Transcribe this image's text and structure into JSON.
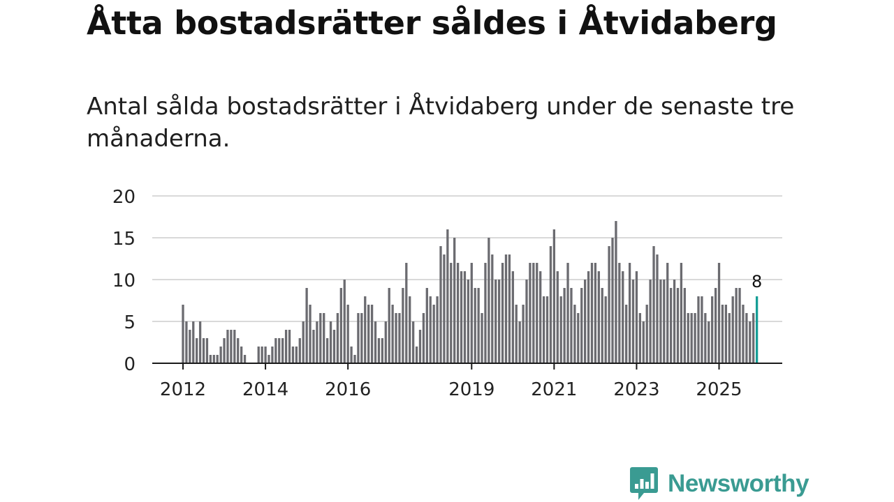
{
  "title": "Åtta bostadsrätter såldes i Åtvidaberg",
  "subtitle": "Antal sålda bostadsrätter i Åtvidaberg under de senaste tre månaderna.",
  "brand": {
    "name": "Newsworthy",
    "icon": "newsworthy-logo-icon",
    "color": "#3a9b92"
  },
  "colors": {
    "bar": "#6b6b70",
    "highlight": "#169e96",
    "grid": "#d9d9d9",
    "axis": "#1a1a1a"
  },
  "chart_data": {
    "type": "bar",
    "title": "Åtta bostadsrätter såldes i Åtvidaberg",
    "xlabel": "",
    "ylabel": "",
    "ylim": [
      0,
      20
    ],
    "y_ticks": [
      0,
      5,
      10,
      15,
      20
    ],
    "x_ticks": [
      "2012",
      "2014",
      "2016",
      "2019",
      "2021",
      "2023",
      "2025"
    ],
    "grid": true,
    "x_tick_bar_index": [
      0,
      24,
      48,
      84,
      108,
      132,
      156
    ],
    "values": [
      7,
      5,
      4,
      5,
      3,
      5,
      3,
      3,
      1,
      1,
      1,
      2,
      3,
      4,
      4,
      4,
      3,
      2,
      1,
      0,
      0,
      0,
      2,
      2,
      2,
      1,
      2,
      3,
      3,
      3,
      4,
      4,
      2,
      2,
      3,
      5,
      9,
      7,
      4,
      5,
      6,
      6,
      3,
      5,
      4,
      6,
      9,
      10,
      7,
      2,
      1,
      6,
      6,
      8,
      7,
      7,
      5,
      3,
      3,
      5,
      9,
      7,
      6,
      6,
      9,
      12,
      8,
      5,
      2,
      4,
      6,
      9,
      8,
      7,
      8,
      14,
      13,
      16,
      12,
      15,
      12,
      11,
      11,
      10,
      12,
      9,
      9,
      6,
      12,
      15,
      13,
      10,
      10,
      12,
      13,
      13,
      11,
      7,
      5,
      7,
      10,
      12,
      12,
      12,
      11,
      8,
      8,
      14,
      16,
      11,
      8,
      9,
      12,
      9,
      7,
      6,
      9,
      10,
      11,
      12,
      12,
      11,
      9,
      8,
      14,
      15,
      17,
      12,
      11,
      7,
      12,
      10,
      11,
      6,
      5,
      7,
      10,
      14,
      13,
      10,
      10,
      12,
      9,
      10,
      9,
      12,
      9,
      6,
      6,
      6,
      8,
      8,
      6,
      5,
      8,
      9,
      12,
      7,
      7,
      6,
      8,
      9,
      9,
      7,
      6,
      5,
      6,
      8
    ],
    "highlight_last": true,
    "last_value_label": "8"
  }
}
